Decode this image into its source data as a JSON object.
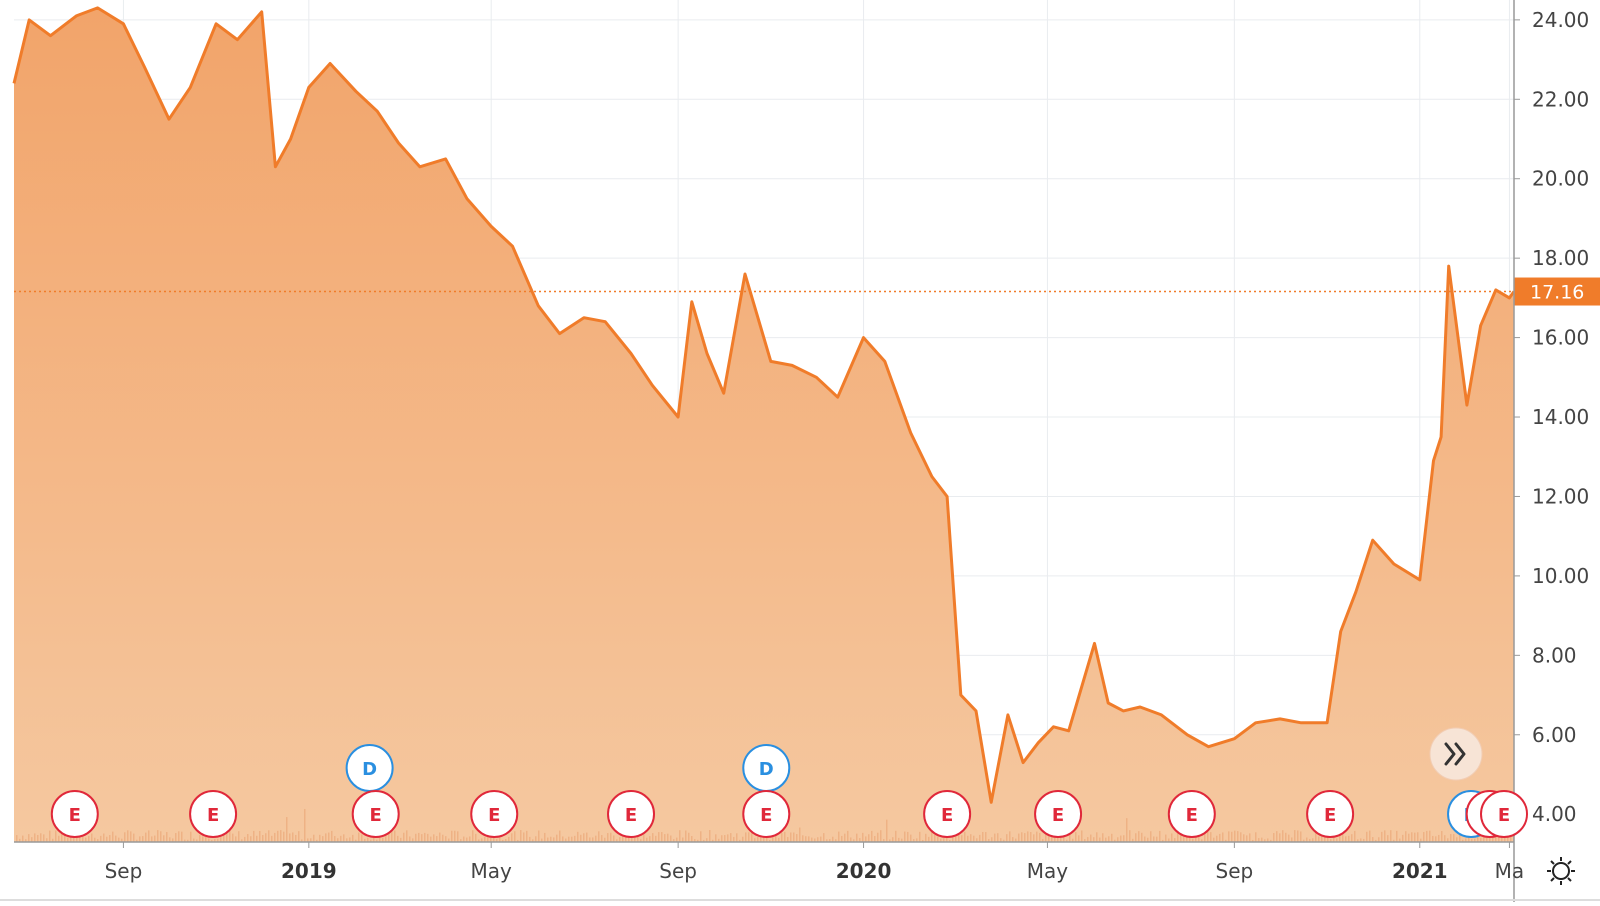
{
  "chart_data": {
    "type": "area",
    "title": "",
    "xlabel": "",
    "ylabel": "",
    "x_range": [
      "2018-06-21",
      "2021-03-04"
    ],
    "y_range": [
      3.3,
      24.5
    ],
    "y_axis_position": "right",
    "y_ticks": [
      "4.00",
      "6.00",
      "8.00",
      "10.00",
      "12.00",
      "14.00",
      "16.00",
      "18.00",
      "20.00",
      "22.00",
      "24.00"
    ],
    "x_ticks": [
      {
        "date": "2018-09-01",
        "label": "Sep",
        "bold": false
      },
      {
        "date": "2019-01-01",
        "label": "2019",
        "bold": true
      },
      {
        "date": "2019-05-01",
        "label": "May",
        "bold": false
      },
      {
        "date": "2019-09-01",
        "label": "Sep",
        "bold": false
      },
      {
        "date": "2020-01-01",
        "label": "2020",
        "bold": true
      },
      {
        "date": "2020-05-01",
        "label": "May",
        "bold": false
      },
      {
        "date": "2020-09-01",
        "label": "Sep",
        "bold": false
      },
      {
        "date": "2021-01-01",
        "label": "2021",
        "bold": true
      },
      {
        "date": "2021-03-01",
        "label": "Ma",
        "bold": false
      }
    ],
    "grid": true,
    "last_price": {
      "value": 17.16,
      "label": "17.16"
    },
    "colors": {
      "line": "#f07c2a",
      "fill_top": "#f2a46a",
      "fill_bottom": "#f5c8a0",
      "volume": "#e8a070",
      "grid": "#e9ecef",
      "earnings": "#e0283a",
      "dividend": "#2a8fe0",
      "axis": "#999999"
    },
    "series": [
      {
        "x": [
          "2018-06-21",
          "2018-07-01",
          "2018-07-15",
          "2018-08-01",
          "2018-08-15",
          "2018-09-01",
          "2018-09-15",
          "2018-10-01",
          "2018-10-15",
          "2018-11-01",
          "2018-11-15",
          "2018-12-01",
          "2018-12-10",
          "2018-12-20",
          "2019-01-01",
          "2019-01-15",
          "2019-02-01",
          "2019-02-15",
          "2019-03-01",
          "2019-03-15",
          "2019-04-01",
          "2019-04-15",
          "2019-05-01",
          "2019-05-15",
          "2019-06-01",
          "2019-06-15",
          "2019-07-01",
          "2019-07-15",
          "2019-08-01",
          "2019-08-15",
          "2019-09-01",
          "2019-09-10",
          "2019-09-20",
          "2019-10-01",
          "2019-10-15",
          "2019-11-01",
          "2019-11-15",
          "2019-12-01",
          "2019-12-15",
          "2020-01-01",
          "2020-01-15",
          "2020-02-01",
          "2020-02-15",
          "2020-02-25",
          "2020-03-05",
          "2020-03-15",
          "2020-03-25",
          "2020-04-05",
          "2020-04-15",
          "2020-04-25",
          "2020-05-05",
          "2020-05-15",
          "2020-06-01",
          "2020-06-10",
          "2020-06-20",
          "2020-07-01",
          "2020-07-15",
          "2020-08-01",
          "2020-08-15",
          "2020-09-01",
          "2020-09-15",
          "2020-10-01",
          "2020-10-15",
          "2020-11-01",
          "2020-11-10",
          "2020-11-20",
          "2020-12-01",
          "2020-12-15",
          "2021-01-01",
          "2021-01-10",
          "2021-01-15",
          "2021-01-20",
          "2021-02-01",
          "2021-02-10",
          "2021-02-20",
          "2021-03-01",
          "2021-03-04"
        ],
        "values": [
          22.4,
          24.0,
          23.6,
          24.1,
          24.3,
          23.9,
          22.8,
          21.5,
          22.3,
          23.9,
          23.5,
          24.2,
          20.3,
          21.0,
          22.3,
          22.9,
          22.2,
          21.7,
          20.9,
          20.3,
          20.5,
          19.5,
          18.8,
          18.3,
          16.8,
          16.1,
          16.5,
          16.4,
          15.6,
          14.8,
          14.0,
          16.9,
          15.6,
          14.6,
          17.6,
          15.4,
          15.3,
          15.0,
          14.5,
          16.0,
          15.4,
          13.6,
          12.5,
          12.0,
          7.0,
          6.6,
          4.3,
          6.5,
          5.3,
          5.8,
          6.2,
          6.1,
          8.3,
          6.8,
          6.6,
          6.7,
          6.5,
          6.0,
          5.7,
          5.9,
          6.3,
          6.4,
          6.3,
          6.3,
          8.6,
          9.6,
          10.9,
          10.3,
          9.9,
          12.9,
          13.5,
          17.8,
          14.3,
          16.3,
          17.2,
          17.0,
          17.16
        ]
      }
    ],
    "event_markers": [
      {
        "type": "earnings",
        "label": "E",
        "date": "2018-07-31"
      },
      {
        "type": "earnings",
        "label": "E",
        "date": "2018-10-30"
      },
      {
        "type": "dividend",
        "label": "D",
        "date": "2019-02-10"
      },
      {
        "type": "earnings",
        "label": "E",
        "date": "2019-02-14"
      },
      {
        "type": "earnings",
        "label": "E",
        "date": "2019-05-03"
      },
      {
        "type": "earnings",
        "label": "E",
        "date": "2019-08-01"
      },
      {
        "type": "dividend",
        "label": "D",
        "date": "2019-10-29"
      },
      {
        "type": "earnings",
        "label": "E",
        "date": "2019-10-29"
      },
      {
        "type": "earnings",
        "label": "E",
        "date": "2020-02-25"
      },
      {
        "type": "earnings",
        "label": "E",
        "date": "2020-05-08"
      },
      {
        "type": "earnings",
        "label": "E",
        "date": "2020-08-04"
      },
      {
        "type": "earnings",
        "label": "E",
        "date": "2020-11-03"
      },
      {
        "type": "dividend",
        "label": "D",
        "date": "2021-02-09"
      },
      {
        "type": "earnings",
        "label": "E",
        "date": "2021-02-16"
      },
      {
        "type": "earnings",
        "label": "E",
        "date": "2021-03-04"
      }
    ]
  },
  "ui": {
    "scroll_button_icon": "double-chevron-right-icon",
    "settings_icon": "sun-gear-icon"
  }
}
